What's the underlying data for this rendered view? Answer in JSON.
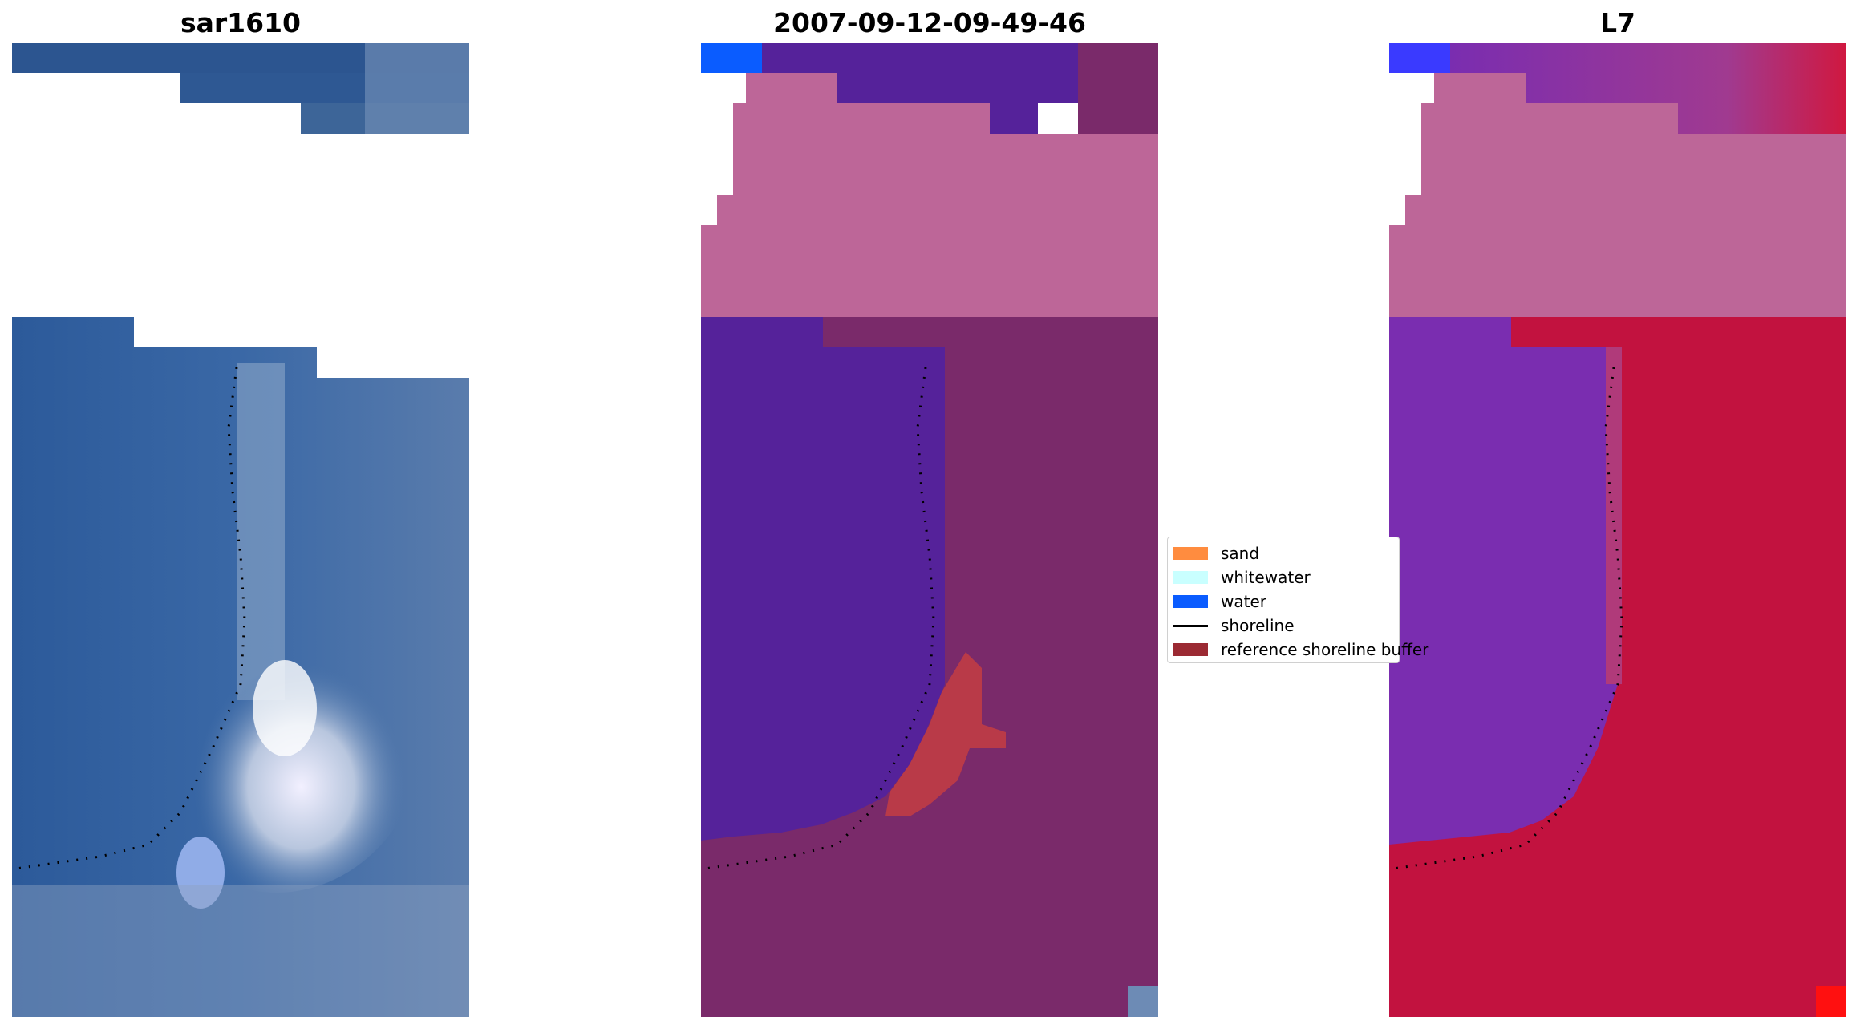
{
  "panels": [
    {
      "title": "sar1610"
    },
    {
      "title": "2007-09-12-09-49-46"
    },
    {
      "title": "L7"
    }
  ],
  "legend": {
    "items": [
      {
        "label": "sand",
        "color": "#ff8c3f",
        "kind": "patch"
      },
      {
        "label": "whitewater",
        "color": "#c9ffff",
        "kind": "patch"
      },
      {
        "label": "water",
        "color": "#0a5cff",
        "kind": "patch"
      },
      {
        "label": "shoreline",
        "color": "#000000",
        "kind": "line"
      },
      {
        "label": "reference shoreline buffer",
        "color": "#9b2a33",
        "kind": "patch"
      }
    ]
  },
  "colors": {
    "rgb_water": "#2d5a98",
    "rgb_bright": "#e6ebf5",
    "classified_water": "#55229a",
    "classified_land": "#7a2a6a",
    "classified_nodata_overlay": "#bd6698",
    "classified_buffer": "#b93a48",
    "index_water": "#7a2db0",
    "index_land": "#c2123f",
    "water_class": "#0a5cff",
    "shoreline": "#000000"
  }
}
